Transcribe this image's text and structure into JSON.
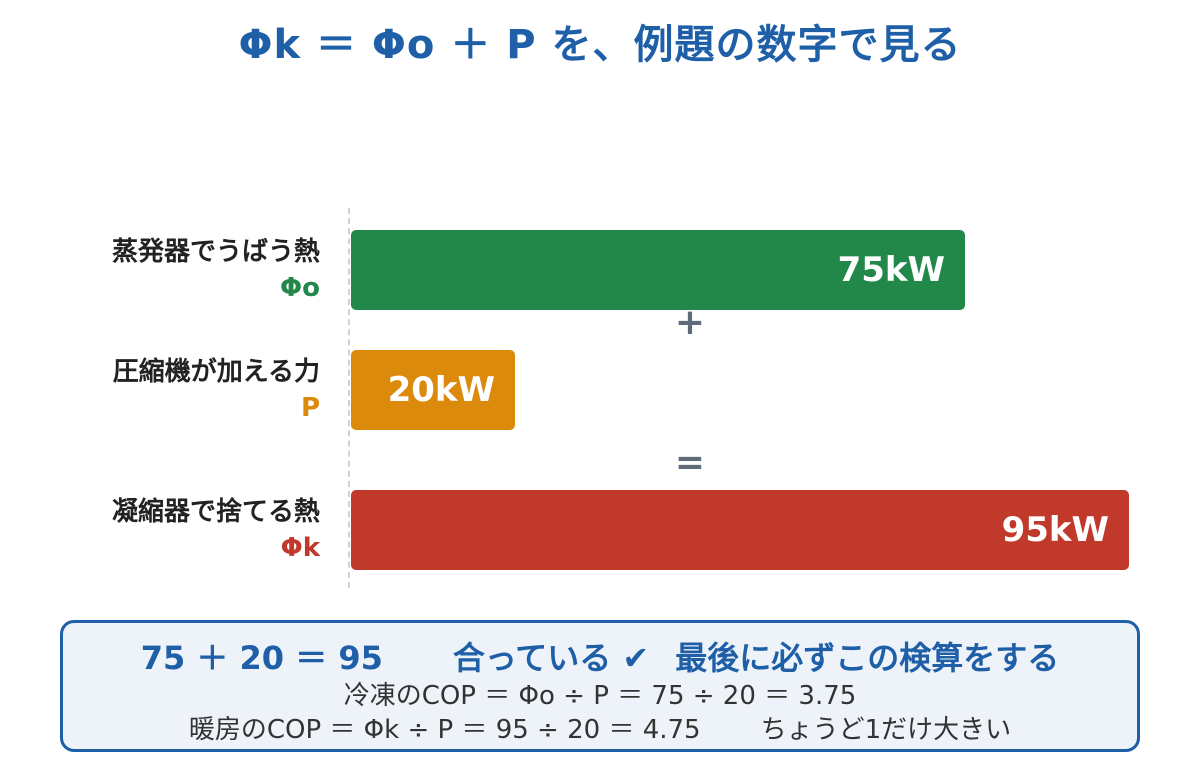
{
  "title": "Φk ＝ Φo ＋ P を、例題の数字で見る",
  "rows": [
    {
      "name": "蒸発器でうばう熱",
      "symbol": "Φo",
      "value_label": "75kW",
      "value": 75,
      "color": "#22884a"
    },
    {
      "name": "圧縮機が加える力",
      "symbol": "P",
      "value_label": "20kW",
      "value": 20,
      "color": "#db8a0c"
    },
    {
      "name": "凝縮器で捨てる熱",
      "symbol": "Φk",
      "value_label": "95kW",
      "value": 95,
      "color": "#c0392b"
    }
  ],
  "operators": {
    "plus": "+",
    "equals": "="
  },
  "summary": {
    "equation": "75 ＋ 20 ＝ 95",
    "check": "合っている ✔",
    "note": "最後に必ずこの検算をする",
    "cop_cooling": "冷凍のCOP ＝ Φo ÷ P ＝ 75 ÷ 20 ＝ 3.75",
    "cop_heating": "暖房のCOP ＝ Φk ÷ P ＝ 95 ÷ 20 ＝ 4.75",
    "cop_heating_note": "ちょうど1だけ大きい"
  },
  "colors": {
    "title": "#1e5fa8",
    "evaporator": "#22884a",
    "compressor": "#db8a0c",
    "condenser": "#c0392b",
    "operator": "#5f6b78",
    "summary_border": "#1e5fa8"
  }
}
